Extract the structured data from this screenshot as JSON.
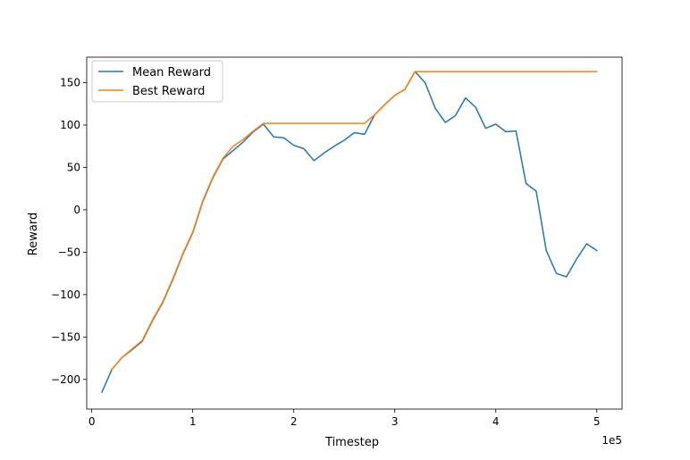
{
  "chart_data": {
    "type": "line",
    "title": "",
    "xlabel": "Timestep",
    "ylabel": "Reward",
    "x_offset_label": "1e5",
    "x_scale_factor": 100000,
    "xlim": [
      -5000,
      525000
    ],
    "ylim": [
      -235,
      180
    ],
    "xticks": [
      0,
      100000,
      200000,
      300000,
      400000,
      500000
    ],
    "xtick_labels": [
      "0",
      "1",
      "2",
      "3",
      "4",
      "5"
    ],
    "yticks": [
      -200,
      -150,
      -100,
      -50,
      0,
      50,
      100,
      150
    ],
    "ytick_labels": [
      "−200",
      "−150",
      "−100",
      "−50",
      "0",
      "50",
      "100",
      "150"
    ],
    "grid": false,
    "legend_position": "upper-left",
    "x": [
      10000,
      20000,
      30000,
      40000,
      50000,
      60000,
      70000,
      80000,
      90000,
      100000,
      110000,
      120000,
      130000,
      140000,
      150000,
      160000,
      170000,
      180000,
      190000,
      200000,
      210000,
      220000,
      230000,
      240000,
      250000,
      260000,
      270000,
      280000,
      290000,
      300000,
      310000,
      320000,
      330000,
      340000,
      350000,
      360000,
      370000,
      380000,
      390000,
      400000,
      410000,
      420000,
      430000,
      440000,
      450000,
      460000,
      470000,
      480000,
      490000,
      500000
    ],
    "series": [
      {
        "name": "Mean Reward",
        "color": "#1f77b4",
        "values": [
          -215,
          -188,
          -174,
          -165,
          -155,
          -131,
          -110,
          -83,
          -53,
          -27,
          10,
          38,
          60,
          70,
          80,
          92,
          101,
          86,
          85,
          76,
          72,
          58,
          67,
          75,
          82,
          91,
          89,
          112,
          124,
          135,
          142,
          163,
          150,
          120,
          103,
          111,
          132,
          121,
          96,
          101,
          92,
          93,
          31,
          22,
          -48,
          -75,
          -79,
          -58,
          -40,
          -48
        ]
      },
      {
        "name": "Best Reward",
        "color": "#ff7f0e",
        "values": [
          null,
          -188,
          -174,
          -164,
          -154,
          -130,
          -109,
          -82,
          -52,
          -26,
          11,
          39,
          61,
          75,
          83,
          93,
          102,
          102,
          102,
          102,
          102,
          102,
          102,
          102,
          102,
          102,
          102,
          112,
          124,
          135,
          142,
          163,
          163,
          163,
          163,
          163,
          163,
          163,
          163,
          163,
          163,
          163,
          163,
          163,
          163,
          163,
          163,
          163,
          163,
          163
        ]
      }
    ]
  }
}
